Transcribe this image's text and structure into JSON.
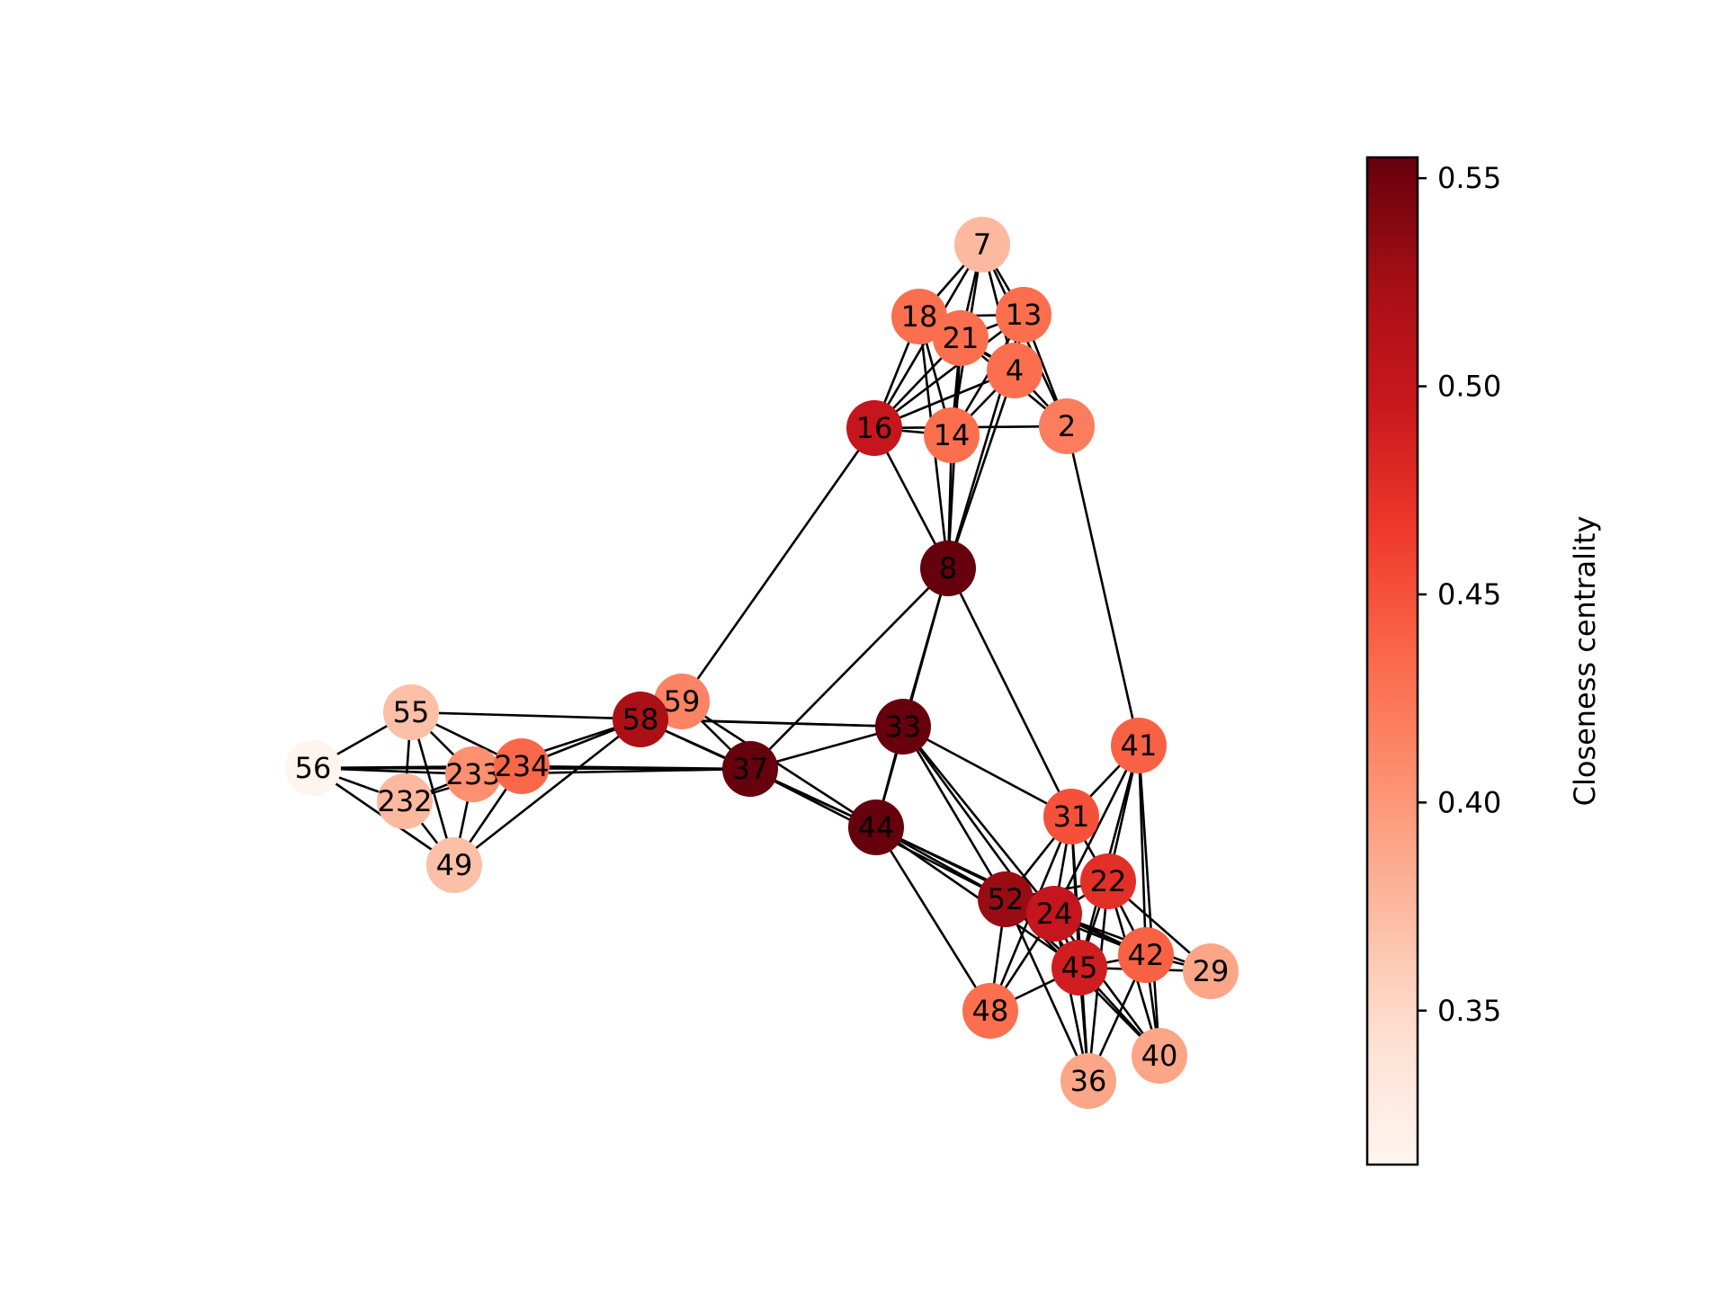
{
  "chart_data": {
    "type": "network",
    "nodes": [
      {
        "id": "7",
        "value": 0.375
      },
      {
        "id": "18",
        "value": 0.43
      },
      {
        "id": "21",
        "value": 0.43
      },
      {
        "id": "13",
        "value": 0.43
      },
      {
        "id": "4",
        "value": 0.43
      },
      {
        "id": "2",
        "value": 0.42
      },
      {
        "id": "16",
        "value": 0.5
      },
      {
        "id": "14",
        "value": 0.43
      },
      {
        "id": "8",
        "value": 0.555
      },
      {
        "id": "59",
        "value": 0.415
      },
      {
        "id": "58",
        "value": 0.52
      },
      {
        "id": "33",
        "value": 0.555
      },
      {
        "id": "37",
        "value": 0.555
      },
      {
        "id": "44",
        "value": 0.555
      },
      {
        "id": "55",
        "value": 0.37
      },
      {
        "id": "56",
        "value": 0.315
      },
      {
        "id": "233",
        "value": 0.405
      },
      {
        "id": "234",
        "value": 0.435
      },
      {
        "id": "232",
        "value": 0.375
      },
      {
        "id": "49",
        "value": 0.37
      },
      {
        "id": "41",
        "value": 0.44
      },
      {
        "id": "31",
        "value": 0.45
      },
      {
        "id": "22",
        "value": 0.475
      },
      {
        "id": "52",
        "value": 0.53
      },
      {
        "id": "24",
        "value": 0.5
      },
      {
        "id": "45",
        "value": 0.49
      },
      {
        "id": "42",
        "value": 0.44
      },
      {
        "id": "29",
        "value": 0.39
      },
      {
        "id": "48",
        "value": 0.43
      },
      {
        "id": "40",
        "value": 0.39
      },
      {
        "id": "36",
        "value": 0.39
      }
    ],
    "edges": [
      [
        "7",
        "18"
      ],
      [
        "7",
        "21"
      ],
      [
        "7",
        "13"
      ],
      [
        "7",
        "4"
      ],
      [
        "7",
        "2"
      ],
      [
        "7",
        "16"
      ],
      [
        "7",
        "14"
      ],
      [
        "18",
        "21"
      ],
      [
        "18",
        "13"
      ],
      [
        "18",
        "4"
      ],
      [
        "18",
        "16"
      ],
      [
        "18",
        "14"
      ],
      [
        "18",
        "8"
      ],
      [
        "21",
        "13"
      ],
      [
        "21",
        "4"
      ],
      [
        "21",
        "16"
      ],
      [
        "21",
        "14"
      ],
      [
        "21",
        "8"
      ],
      [
        "21",
        "2"
      ],
      [
        "13",
        "4"
      ],
      [
        "13",
        "2"
      ],
      [
        "13",
        "16"
      ],
      [
        "13",
        "14"
      ],
      [
        "13",
        "8"
      ],
      [
        "4",
        "2"
      ],
      [
        "4",
        "16"
      ],
      [
        "4",
        "14"
      ],
      [
        "4",
        "8"
      ],
      [
        "16",
        "14"
      ],
      [
        "16",
        "2"
      ],
      [
        "16",
        "8"
      ],
      [
        "16",
        "59"
      ],
      [
        "14",
        "8"
      ],
      [
        "8",
        "33"
      ],
      [
        "8",
        "44"
      ],
      [
        "8",
        "37"
      ],
      [
        "8",
        "31"
      ],
      [
        "2",
        "41"
      ],
      [
        "59",
        "37"
      ],
      [
        "59",
        "44"
      ],
      [
        "58",
        "33"
      ],
      [
        "58",
        "37"
      ],
      [
        "58",
        "44"
      ],
      [
        "58",
        "234"
      ],
      [
        "58",
        "233"
      ],
      [
        "58",
        "49"
      ],
      [
        "33",
        "37"
      ],
      [
        "33",
        "44"
      ],
      [
        "33",
        "31"
      ],
      [
        "33",
        "52"
      ],
      [
        "33",
        "24"
      ],
      [
        "33",
        "45"
      ],
      [
        "37",
        "44"
      ],
      [
        "37",
        "52"
      ],
      [
        "37",
        "56"
      ],
      [
        "37",
        "233"
      ],
      [
        "37",
        "234"
      ],
      [
        "44",
        "52"
      ],
      [
        "44",
        "24"
      ],
      [
        "44",
        "45"
      ],
      [
        "44",
        "48"
      ],
      [
        "44",
        "42"
      ],
      [
        "55",
        "56"
      ],
      [
        "55",
        "233"
      ],
      [
        "55",
        "234"
      ],
      [
        "55",
        "232"
      ],
      [
        "55",
        "49"
      ],
      [
        "55",
        "33"
      ],
      [
        "56",
        "233"
      ],
      [
        "56",
        "232"
      ],
      [
        "56",
        "234"
      ],
      [
        "56",
        "49"
      ],
      [
        "233",
        "234"
      ],
      [
        "233",
        "232"
      ],
      [
        "233",
        "49"
      ],
      [
        "234",
        "232"
      ],
      [
        "234",
        "49"
      ],
      [
        "232",
        "49"
      ],
      [
        "41",
        "31"
      ],
      [
        "41",
        "22"
      ],
      [
        "41",
        "24"
      ],
      [
        "41",
        "45"
      ],
      [
        "41",
        "42"
      ],
      [
        "41",
        "40"
      ],
      [
        "31",
        "22"
      ],
      [
        "31",
        "52"
      ],
      [
        "31",
        "24"
      ],
      [
        "31",
        "45"
      ],
      [
        "31",
        "36"
      ],
      [
        "31",
        "48"
      ],
      [
        "22",
        "52"
      ],
      [
        "22",
        "24"
      ],
      [
        "22",
        "45"
      ],
      [
        "22",
        "42"
      ],
      [
        "22",
        "36"
      ],
      [
        "22",
        "40"
      ],
      [
        "52",
        "24"
      ],
      [
        "52",
        "45"
      ],
      [
        "52",
        "42"
      ],
      [
        "52",
        "48"
      ],
      [
        "52",
        "36"
      ],
      [
        "52",
        "40"
      ],
      [
        "24",
        "45"
      ],
      [
        "24",
        "42"
      ],
      [
        "24",
        "29"
      ],
      [
        "24",
        "48"
      ],
      [
        "24",
        "36"
      ],
      [
        "24",
        "40"
      ],
      [
        "45",
        "42"
      ],
      [
        "45",
        "29"
      ],
      [
        "45",
        "48"
      ],
      [
        "45",
        "36"
      ],
      [
        "45",
        "40"
      ],
      [
        "42",
        "29"
      ],
      [
        "42",
        "40"
      ],
      [
        "42",
        "36"
      ],
      [
        "29",
        "22"
      ]
    ],
    "colorbar": {
      "label": "Closeness centrality",
      "colormap": "Reds",
      "range": [
        0.313,
        0.555
      ],
      "ticks": [
        0.35,
        0.4,
        0.45,
        0.5,
        0.55
      ],
      "tick_labels": [
        "0.35",
        "0.40",
        "0.45",
        "0.50",
        "0.55"
      ]
    }
  }
}
